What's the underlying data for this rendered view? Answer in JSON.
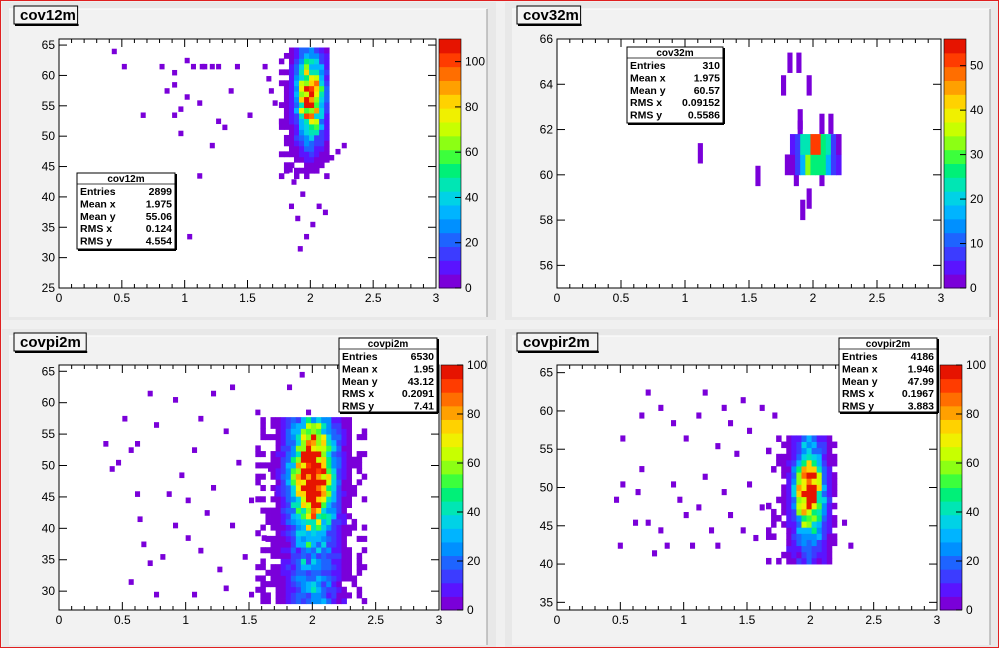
{
  "canvas": {
    "border_color": "#e02020",
    "pad_color": "#e6e6e6",
    "frame_color": "#ffffff"
  },
  "palette_labels_note": "",
  "chart_data": [
    {
      "id": "cov12m",
      "type": "heatmap",
      "title": "cov12m",
      "stats": {
        "title": "cov12m",
        "rows": [
          {
            "label": "Entries",
            "value": "2899"
          },
          {
            "label": "Mean x",
            "value": "1.975"
          },
          {
            "label": "Mean y",
            "value": "55.06"
          },
          {
            "label": "RMS x",
            "value": "0.124"
          },
          {
            "label": "RMS y",
            "value": "4.554"
          }
        ]
      },
      "xlim": [
        0,
        3
      ],
      "ylim": [
        25,
        66
      ],
      "xticks": [
        "0",
        "0.5",
        "1",
        "1.5",
        "2",
        "2.5",
        "3"
      ],
      "xtick_values": [
        0,
        0.5,
        1,
        1.5,
        2,
        2.5,
        3
      ],
      "yticks": [
        "25",
        "30",
        "35",
        "40",
        "45",
        "50",
        "55",
        "60",
        "65"
      ],
      "ytick_values": [
        25,
        30,
        35,
        40,
        45,
        50,
        55,
        60,
        65
      ],
      "zlim": [
        0,
        110
      ],
      "zticks": [
        "0",
        "20",
        "40",
        "60",
        "80",
        "100"
      ],
      "ztick_values": [
        0,
        20,
        40,
        60,
        80,
        100
      ],
      "bin_width": 0.04,
      "bin_height": 0.9,
      "sparse_points": [
        [
          0.42,
          63.5
        ],
        [
          0.5,
          61
        ],
        [
          0.65,
          53
        ],
        [
          0.8,
          61
        ],
        [
          0.84,
          57
        ],
        [
          0.9,
          58
        ],
        [
          0.9,
          53
        ],
        [
          0.9,
          60
        ],
        [
          0.95,
          54
        ],
        [
          0.95,
          50
        ],
        [
          1.0,
          62
        ],
        [
          1.0,
          56
        ],
        [
          1.05,
          61
        ],
        [
          1.1,
          55
        ],
        [
          1.1,
          43
        ],
        [
          1.12,
          61
        ],
        [
          1.14,
          61
        ],
        [
          1.2,
          48
        ],
        [
          1.2,
          61
        ],
        [
          1.25,
          61
        ],
        [
          1.25,
          52
        ],
        [
          1.3,
          51
        ],
        [
          1.35,
          57
        ],
        [
          1.4,
          61
        ],
        [
          1.5,
          53
        ],
        [
          1.62,
          61
        ],
        [
          1.65,
          59
        ],
        [
          1.67,
          57
        ],
        [
          1.7,
          55
        ],
        [
          1.75,
          52
        ],
        [
          1.02,
          33
        ],
        [
          1.82,
          44
        ],
        [
          1.83,
          38
        ],
        [
          1.85,
          42
        ],
        [
          1.88,
          36
        ],
        [
          1.9,
          31
        ],
        [
          1.92,
          40
        ],
        [
          1.95,
          33
        ],
        [
          2.0,
          35
        ],
        [
          2.05,
          38
        ],
        [
          2.1,
          37
        ],
        [
          2.15,
          46
        ],
        [
          2.2,
          47
        ],
        [
          2.25,
          48
        ]
      ],
      "core": {
        "x0": 1.75,
        "x1": 2.15,
        "y0": 43,
        "y1": 64.5,
        "cx": 1.98,
        "cy": 56,
        "sx": 0.07,
        "sy": 4.5,
        "peak": 105
      }
    },
    {
      "id": "cov32m",
      "type": "heatmap",
      "title": "cov32m",
      "stats": {
        "title": "cov32m",
        "rows": [
          {
            "label": "Entries",
            "value": "310"
          },
          {
            "label": "Mean x",
            "value": "1.975"
          },
          {
            "label": "Mean y",
            "value": "60.57"
          },
          {
            "label": "RMS x",
            "value": "0.09152"
          },
          {
            "label": "RMS y",
            "value": "0.5586"
          }
        ]
      },
      "xlim": [
        0,
        3
      ],
      "ylim": [
        55,
        66
      ],
      "xticks": [
        "0",
        "0.5",
        "1",
        "1.5",
        "2",
        "2.5",
        "3"
      ],
      "xtick_values": [
        0,
        0.5,
        1,
        1.5,
        2,
        2.5,
        3
      ],
      "yticks": [
        "56",
        "58",
        "60",
        "62",
        "64",
        "66"
      ],
      "ytick_values": [
        56,
        58,
        60,
        62,
        64,
        66
      ],
      "zlim": [
        0,
        56
      ],
      "zticks": [
        "0",
        "10",
        "20",
        "30",
        "40",
        "50"
      ],
      "ztick_values": [
        0,
        10,
        20,
        30,
        40,
        50
      ],
      "bin_width": 0.04,
      "bin_height": 0.9,
      "sparse_points": [
        [
          1.1,
          60.5
        ],
        [
          1.55,
          59.5
        ],
        [
          1.8,
          64.5
        ],
        [
          1.87,
          64.5
        ],
        [
          1.75,
          63.5
        ],
        [
          1.95,
          63.5
        ],
        [
          1.88,
          62
        ],
        [
          1.88,
          61.5
        ],
        [
          1.95,
          58.5
        ],
        [
          1.9,
          58
        ],
        [
          1.85,
          59.5
        ],
        [
          2.05,
          59.5
        ],
        [
          2.05,
          61.8
        ],
        [
          2.12,
          61.8
        ]
      ],
      "core": {
        "x0": 1.78,
        "x1": 2.18,
        "y0": 60,
        "y1": 61.2,
        "cx": 2.0,
        "cy": 60.5,
        "sx": 0.08,
        "sy": 0.5,
        "peak": 55
      }
    },
    {
      "id": "covpi2m",
      "type": "heatmap",
      "title": "covpi2m",
      "stats": {
        "title": "covpi2m",
        "rows": [
          {
            "label": "Entries",
            "value": "6530"
          },
          {
            "label": "Mean x",
            "value": "1.95"
          },
          {
            "label": "Mean y",
            "value": "43.12"
          },
          {
            "label": "RMS x",
            "value": "0.2091"
          },
          {
            "label": "RMS y",
            "value": "7.41"
          }
        ]
      },
      "xlim": [
        0,
        3
      ],
      "ylim": [
        27,
        66
      ],
      "xticks": [
        "0",
        "0.5",
        "1",
        "1.5",
        "2",
        "2.5",
        "3"
      ],
      "xtick_values": [
        0,
        0.5,
        1,
        1.5,
        2,
        2.5,
        3
      ],
      "yticks": [
        "30",
        "35",
        "40",
        "45",
        "50",
        "55",
        "60",
        "65"
      ],
      "ytick_values": [
        30,
        35,
        40,
        45,
        50,
        55,
        60,
        65
      ],
      "zlim": [
        0,
        100
      ],
      "zticks": [
        "0",
        "20",
        "40",
        "60",
        "80",
        "100"
      ],
      "ztick_values": [
        0,
        20,
        40,
        60,
        80,
        100
      ],
      "bin_width": 0.04,
      "bin_height": 0.9,
      "sparse_points": [
        [
          0.5,
          57
        ],
        [
          0.45,
          50
        ],
        [
          0.55,
          52
        ],
        [
          0.6,
          45
        ],
        [
          0.62,
          41
        ],
        [
          0.65,
          37
        ],
        [
          0.7,
          34
        ],
        [
          0.55,
          31
        ],
        [
          0.8,
          35
        ],
        [
          0.85,
          45
        ],
        [
          0.9,
          60
        ],
        [
          0.95,
          48
        ],
        [
          1.0,
          44
        ],
        [
          1.0,
          38
        ],
        [
          1.05,
          52
        ],
        [
          1.1,
          57
        ],
        [
          1.15,
          42
        ],
        [
          1.2,
          46
        ],
        [
          1.25,
          33
        ],
        [
          1.3,
          55
        ],
        [
          1.35,
          40
        ],
        [
          1.4,
          50
        ],
        [
          1.45,
          35
        ],
        [
          1.5,
          44
        ],
        [
          1.55,
          58
        ],
        [
          1.6,
          38
        ],
        [
          0.7,
          61
        ],
        [
          0.75,
          56
        ],
        [
          1.2,
          61
        ],
        [
          1.35,
          62
        ],
        [
          1.8,
          62
        ],
        [
          1.9,
          64
        ],
        [
          1.95,
          58
        ],
        [
          0.35,
          53
        ],
        [
          0.4,
          49
        ],
        [
          0.6,
          53
        ],
        [
          0.9,
          40
        ],
        [
          1.1,
          36
        ],
        [
          1.3,
          30
        ],
        [
          0.75,
          29
        ],
        [
          1.05,
          29
        ],
        [
          1.5,
          29
        ],
        [
          1.65,
          49
        ],
        [
          1.7,
          45
        ]
      ],
      "core": {
        "x0": 1.55,
        "x1": 2.4,
        "y0": 28,
        "y1": 57,
        "cx": 1.98,
        "cy": 48,
        "sx": 0.1,
        "sy": 5,
        "peak": 100,
        "floor": 35
      }
    },
    {
      "id": "covpir2m",
      "type": "heatmap",
      "title": "covpir2m",
      "stats": {
        "title": "covpir2m",
        "rows": [
          {
            "label": "Entries",
            "value": "4186"
          },
          {
            "label": "Mean x",
            "value": "1.946"
          },
          {
            "label": "Mean y",
            "value": "47.99"
          },
          {
            "label": "RMS x",
            "value": "0.1967"
          },
          {
            "label": "RMS y",
            "value": "3.883"
          }
        ]
      },
      "xlim": [
        0,
        3
      ],
      "ylim": [
        34,
        66
      ],
      "xticks": [
        "0",
        "0.5",
        "1",
        "1.5",
        "2",
        "2.5",
        "3"
      ],
      "xtick_values": [
        0,
        0.5,
        1,
        1.5,
        2,
        2.5,
        3
      ],
      "yticks": [
        "35",
        "40",
        "45",
        "50",
        "55",
        "60",
        "65"
      ],
      "ytick_values": [
        35,
        40,
        45,
        50,
        55,
        60,
        65
      ],
      "zlim": [
        0,
        100
      ],
      "zticks": [
        "0",
        "20",
        "40",
        "60",
        "80",
        "100"
      ],
      "ztick_values": [
        0,
        20,
        40,
        60,
        80,
        100
      ],
      "bin_width": 0.04,
      "bin_height": 0.8,
      "sparse_points": [
        [
          0.5,
          50
        ],
        [
          0.45,
          48
        ],
        [
          0.62,
          49
        ],
        [
          0.65,
          52
        ],
        [
          0.7,
          45
        ],
        [
          0.75,
          41
        ],
        [
          0.8,
          44
        ],
        [
          0.85,
          42
        ],
        [
          0.9,
          50
        ],
        [
          0.95,
          48
        ],
        [
          1.0,
          46
        ],
        [
          1.05,
          42
        ],
        [
          1.1,
          47
        ],
        [
          1.15,
          51
        ],
        [
          1.2,
          44
        ],
        [
          1.25,
          42
        ],
        [
          1.3,
          49
        ],
        [
          1.35,
          46
        ],
        [
          1.45,
          44
        ],
        [
          1.5,
          50
        ],
        [
          1.55,
          43
        ],
        [
          1.6,
          47
        ],
        [
          0.65,
          59
        ],
        [
          0.7,
          62
        ],
        [
          0.8,
          60
        ],
        [
          0.9,
          58
        ],
        [
          1.0,
          56
        ],
        [
          1.1,
          59
        ],
        [
          1.15,
          62
        ],
        [
          1.25,
          55
        ],
        [
          1.3,
          60
        ],
        [
          1.35,
          58
        ],
        [
          1.45,
          61
        ],
        [
          1.5,
          57
        ],
        [
          1.6,
          60
        ],
        [
          1.7,
          59
        ],
        [
          1.75,
          53
        ],
        [
          2.05,
          55
        ],
        [
          2.15,
          50
        ],
        [
          2.25,
          45
        ],
        [
          2.3,
          42
        ],
        [
          0.48,
          42
        ],
        [
          0.6,
          45
        ],
        [
          1.4,
          54
        ],
        [
          0.5,
          56
        ]
      ],
      "core": {
        "x0": 1.65,
        "x1": 2.2,
        "y0": 40,
        "y1": 56,
        "cx": 1.97,
        "cy": 49,
        "sx": 0.07,
        "sy": 3,
        "peak": 100,
        "floor": 20
      }
    }
  ]
}
